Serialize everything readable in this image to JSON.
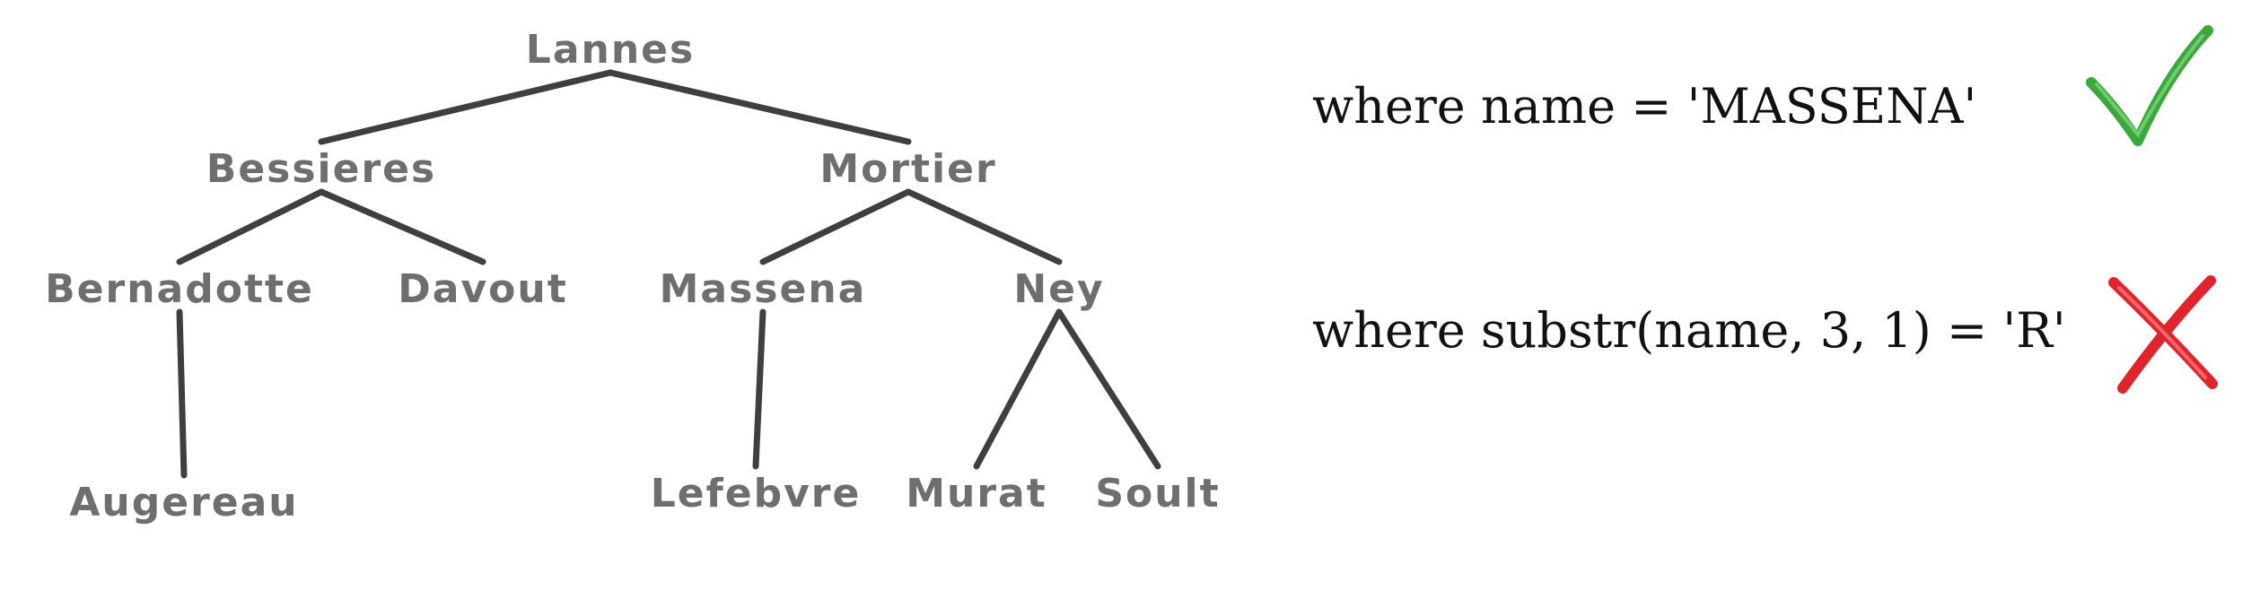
{
  "tree": {
    "nodes": [
      {
        "id": "lannes",
        "label": "Lannes"
      },
      {
        "id": "bessieres",
        "label": "Bessieres"
      },
      {
        "id": "mortier",
        "label": "Mortier"
      },
      {
        "id": "bernadotte",
        "label": "Bernadotte"
      },
      {
        "id": "davout",
        "label": "Davout"
      },
      {
        "id": "massena",
        "label": "Massena"
      },
      {
        "id": "ney",
        "label": "Ney"
      },
      {
        "id": "augereau",
        "label": "Augereau"
      },
      {
        "id": "lefebvre",
        "label": "Lefebvre"
      },
      {
        "id": "murat",
        "label": "Murat"
      },
      {
        "id": "soult",
        "label": "Soult"
      }
    ],
    "edges": [
      [
        "lannes",
        "bessieres"
      ],
      [
        "lannes",
        "mortier"
      ],
      [
        "bessieres",
        "bernadotte"
      ],
      [
        "bessieres",
        "davout"
      ],
      [
        "mortier",
        "massena"
      ],
      [
        "mortier",
        "ney"
      ],
      [
        "bernadotte",
        "augereau"
      ],
      [
        "massena",
        "lefebvre"
      ],
      [
        "ney",
        "murat"
      ],
      [
        "ney",
        "soult"
      ]
    ]
  },
  "clauses": [
    {
      "text": "where name = 'MASSENA'",
      "result_icon": "checkmark-icon",
      "result_color": "#3aa83a"
    },
    {
      "text": "where substr(name, 3, 1) = 'R'",
      "result_icon": "cross-icon",
      "result_color": "#e0242c"
    }
  ]
}
